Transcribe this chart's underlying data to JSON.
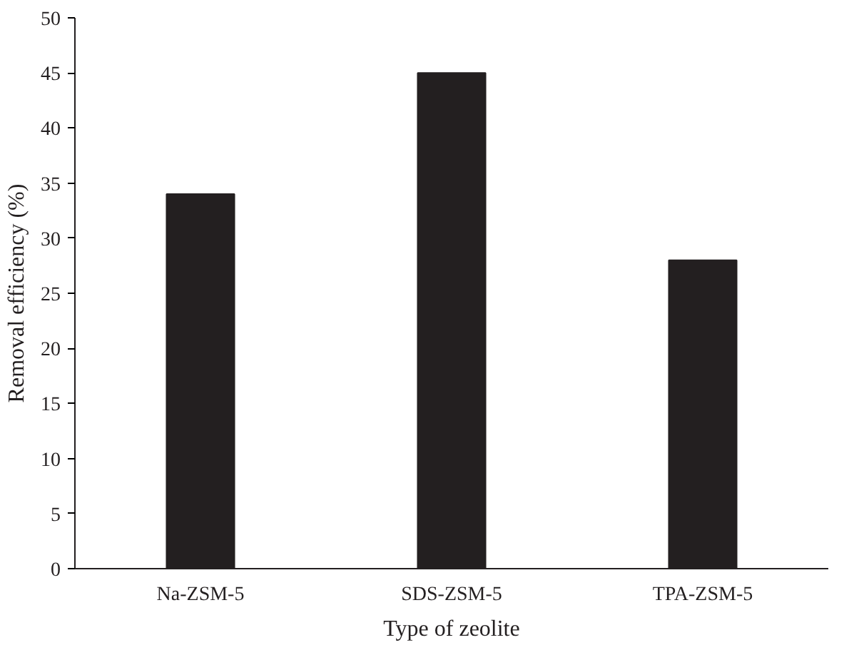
{
  "chart_data": {
    "type": "bar",
    "xlabel": "Type of zeolite",
    "ylabel": "Removal efficiency (%)",
    "categories": [
      "Na-ZSM-5",
      "SDS-ZSM-5",
      "TPA-ZSM-5"
    ],
    "values": [
      34,
      45,
      28
    ],
    "color": "#231f20",
    "ylim": [
      0,
      50
    ],
    "yticks": [
      0,
      5,
      10,
      15,
      20,
      25,
      30,
      35,
      40,
      45,
      50
    ],
    "grid": false
  }
}
